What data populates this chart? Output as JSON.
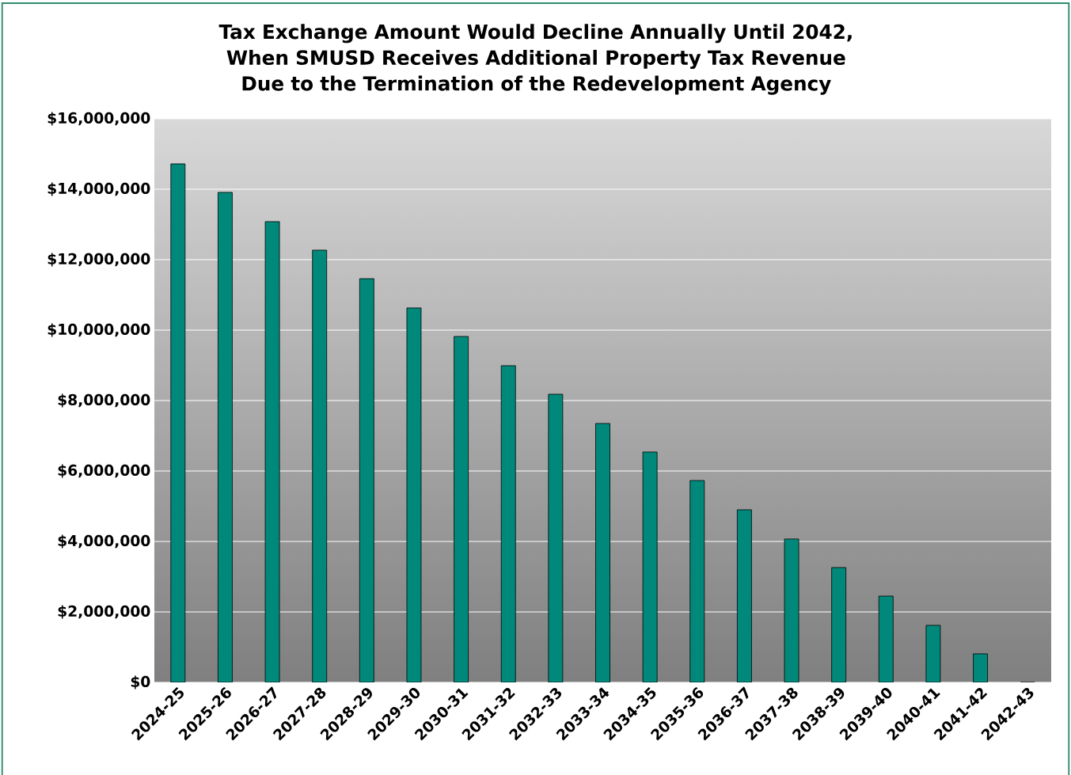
{
  "chart_data": {
    "type": "bar",
    "title": "Tax Exchange Amount Would Decline Annually Until 2042, When SMUSD Receives Additional Property Tax Revenue Due to the Termination of the Redevelopment Agency",
    "categories": [
      "2024-25",
      "2025-26",
      "2026-27",
      "2027-28",
      "2028-29",
      "2029-30",
      "2030-31",
      "2031-32",
      "2032-33",
      "2033-34",
      "2034-35",
      "2035-36",
      "2036-37",
      "2037-38",
      "2038-39",
      "2039-40",
      "2040-41",
      "2041-42",
      "2042-43"
    ],
    "values": [
      14720000,
      13910000,
      13080000,
      12270000,
      11460000,
      10630000,
      9820000,
      8990000,
      8180000,
      7350000,
      6540000,
      5730000,
      4900000,
      4070000,
      3260000,
      2450000,
      1620000,
      810000,
      0
    ],
    "color": "#00897a",
    "ylim": [
      0,
      16000000
    ],
    "yticks": [
      {
        "value": 0,
        "label": "$0"
      },
      {
        "value": 2000000,
        "label": "$2,000,000"
      },
      {
        "value": 4000000,
        "label": "$4,000,000"
      },
      {
        "value": 6000000,
        "label": "$6,000,000"
      },
      {
        "value": 8000000,
        "label": "$8,000,000"
      },
      {
        "value": 10000000,
        "label": "$10,000,000"
      },
      {
        "value": 12000000,
        "label": "$12,000,000"
      },
      {
        "value": 14000000,
        "label": "$14,000,000"
      },
      {
        "value": 16000000,
        "label": "$16,000,000"
      }
    ],
    "grid": "y"
  }
}
